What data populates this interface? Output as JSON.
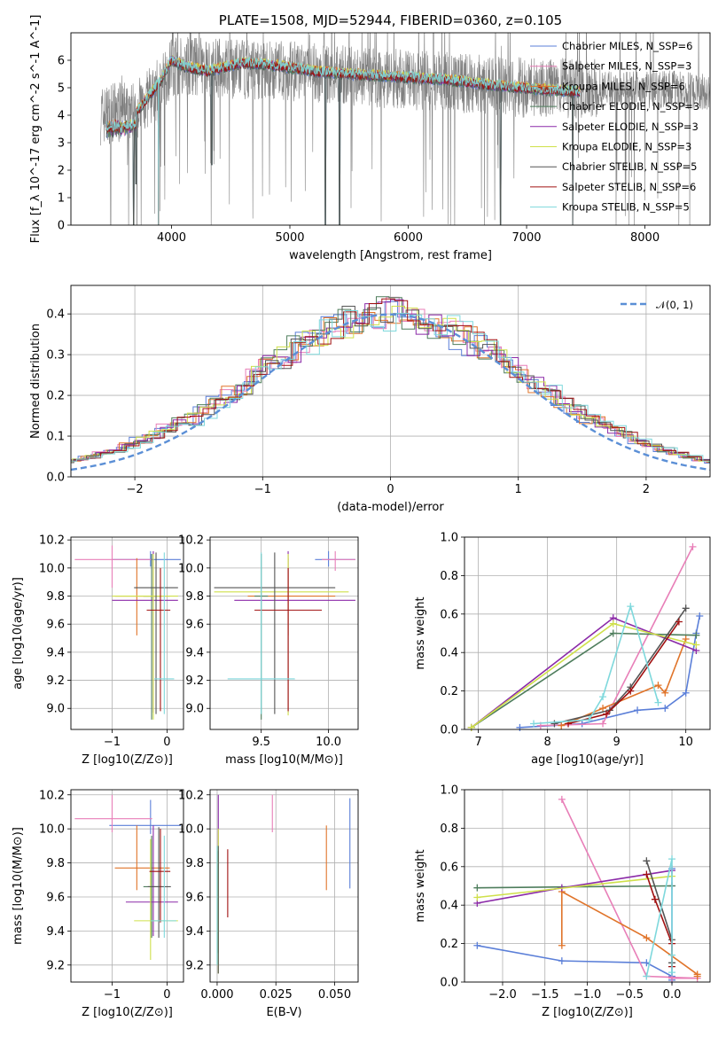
{
  "colors": {
    "c0": "#5b7fd8",
    "c1": "#e87fb8",
    "c2": "#e0742a",
    "c3": "#4e7d5c",
    "c4": "#8b2aa8",
    "c5": "#cfe04a",
    "c6": "#555555",
    "c7": "#a01010",
    "c8": "#7ed8dc",
    "normal": "#5b8fd6"
  },
  "chart_data": [
    {
      "id": "spectrum",
      "type": "line",
      "title": "PLATE=1508, MJD=52944, FIBERID=0360, z=0.105",
      "xlabel": "wavelength [Angstrom, rest frame]",
      "ylabel": "Flux [f_λ 10^-17 erg cm^-2 s^-1 A^-1]",
      "xlim": [
        3150,
        8550
      ],
      "ylim": [
        0,
        7
      ],
      "xticks": [
        "4000",
        "5000",
        "6000",
        "7000",
        "8000"
      ],
      "yticks": [
        "0",
        "1",
        "2",
        "3",
        "4",
        "5",
        "6"
      ],
      "grid": false,
      "legend_position": "right",
      "legend": [
        "Chabrier MILES, N_SSP=6",
        "Salpeter MILES, N_SSP=3",
        "Kroupa MILES, N_SSP=6",
        "Chabrier ELODIE, N_SSP=3",
        "Salpeter ELODIE, N_SSP=3",
        "Kroupa ELODIE, N_SSP=3",
        "Chabrier STELIB, N_SSP=5",
        "Salpeter STELIB, N_SSP=6",
        "Kroupa STELIB, N_SSP=5"
      ],
      "model_wavelength_range": [
        3450,
        7450
      ],
      "model_continuum": [
        [
          3450,
          4.0
        ],
        [
          3700,
          4.1
        ],
        [
          3900,
          5.2
        ],
        [
          4000,
          6.0
        ],
        [
          4100,
          5.8
        ],
        [
          4300,
          5.6
        ],
        [
          4600,
          5.9
        ],
        [
          4900,
          5.8
        ],
        [
          5200,
          5.6
        ],
        [
          5500,
          5.5
        ],
        [
          5900,
          5.4
        ],
        [
          6300,
          5.3
        ],
        [
          6700,
          5.1
        ],
        [
          7100,
          4.95
        ],
        [
          7450,
          4.85
        ]
      ],
      "data_wavelength_range": [
        3400,
        8550
      ],
      "data_continuum": [
        [
          3400,
          4.0
        ],
        [
          3700,
          4.2
        ],
        [
          3900,
          5.0
        ],
        [
          4000,
          5.8
        ],
        [
          4500,
          5.7
        ],
        [
          5000,
          5.6
        ],
        [
          6000,
          5.3
        ],
        [
          7000,
          5.0
        ],
        [
          8000,
          4.95
        ],
        [
          8550,
          4.9
        ]
      ]
    },
    {
      "id": "residuals",
      "type": "histogram",
      "xlabel": "(data-model)/error",
      "ylabel": "Normed distribution",
      "xlim": [
        -2.5,
        2.5
      ],
      "ylim": [
        0,
        0.47
      ],
      "xticks": [
        "−2",
        "−1",
        "0",
        "1",
        "2"
      ],
      "yticks": [
        "0.0",
        "0.1",
        "0.2",
        "0.3",
        "0.4"
      ],
      "grid": true,
      "legend": [
        "𝒩(0, 1)"
      ],
      "legend_position": "top-right",
      "bin_width": 0.1
    },
    {
      "id": "age_vs_Z",
      "type": "errorbar",
      "xlabel": "Z [log10(Z/Z⊙)]",
      "ylabel": "age  [log10(age/yr)]",
      "xlim": [
        -1.75,
        0.3
      ],
      "ylim": [
        8.85,
        10.22
      ],
      "xticks": [
        "−1",
        "0"
      ],
      "yticks": [
        "9.0",
        "9.2",
        "9.4",
        "9.6",
        "9.8",
        "10.0",
        "10.2"
      ],
      "grid": true,
      "points": [
        {
          "x": -0.3,
          "xe": [
            0.7,
            0.55
          ],
          "y": 10.06,
          "ye": [
            0.05,
            0.06
          ],
          "c": "c0"
        },
        {
          "x": -1.0,
          "xe": [
            0.68,
            0.73
          ],
          "y": 10.06,
          "ye": [
            0.2,
            0.1
          ],
          "c": "c1"
        },
        {
          "x": -0.55,
          "xe": [
            0.4,
            0.6
          ],
          "y": 9.8,
          "ye": [
            0.28,
            0.27
          ],
          "c": "c2"
        },
        {
          "x": -0.28,
          "xe": [
            0.15,
            0.15
          ],
          "y": 9.8,
          "ye": [
            0.88,
            0.3
          ],
          "c": "c3"
        },
        {
          "x": -0.25,
          "xe": [
            0.75,
            0.45
          ],
          "y": 9.77,
          "ye": [
            0.8,
            0.35
          ],
          "c": "c4"
        },
        {
          "x": -0.25,
          "xe": [
            0.75,
            0.45
          ],
          "y": 9.8,
          "ye": [
            0.88,
            0.3
          ],
          "c": "c5"
        },
        {
          "x": -0.2,
          "xe": [
            0.4,
            0.4
          ],
          "y": 9.86,
          "ye": [
            0.9,
            0.25
          ],
          "c": "c6"
        },
        {
          "x": -0.12,
          "xe": [
            0.25,
            0.18
          ],
          "y": 9.7,
          "ye": [
            0.72,
            0.3
          ],
          "c": "c7"
        },
        {
          "x": -0.05,
          "xe": [
            0.18,
            0.18
          ],
          "y": 9.21,
          "ye": [
            0.25,
            0.9
          ],
          "c": "c8"
        }
      ]
    },
    {
      "id": "age_vs_mass",
      "type": "errorbar",
      "xlabel": "mass [log10(M/M⊙)]",
      "ylabel": "",
      "xlim": [
        9.12,
        10.22
      ],
      "ylim": [
        8.85,
        10.22
      ],
      "xticks": [
        "9.5",
        "10.0"
      ],
      "yticks": [
        "9.0",
        "9.2",
        "9.4",
        "9.6",
        "9.8",
        "10.0",
        "10.2"
      ],
      "grid": true,
      "points": [
        {
          "x": 10.0,
          "xe": [
            0.1,
            0.2
          ],
          "y": 10.06,
          "ye": [
            0.05,
            0.06
          ],
          "c": "c0"
        },
        {
          "x": 10.05,
          "xe": [
            0.1,
            0.15
          ],
          "y": 10.06,
          "ye": [
            0.08,
            0.06
          ],
          "c": "c1"
        },
        {
          "x": 9.7,
          "xe": [
            0.3,
            0.35
          ],
          "y": 9.8,
          "ye": [
            0.28,
            0.27
          ],
          "c": "c2"
        },
        {
          "x": 9.5,
          "xe": [
            0.05,
            0.05
          ],
          "y": 9.8,
          "ye": [
            0.88,
            0.3
          ],
          "c": "c3"
        },
        {
          "x": 9.7,
          "xe": [
            0.4,
            0.5
          ],
          "y": 9.77,
          "ye": [
            0.8,
            0.35
          ],
          "c": "c4"
        },
        {
          "x": 9.7,
          "xe": [
            0.55,
            0.45
          ],
          "y": 9.83,
          "ye": [
            0.88,
            0.27
          ],
          "c": "c5"
        },
        {
          "x": 9.6,
          "xe": [
            0.45,
            0.45
          ],
          "y": 9.86,
          "ye": [
            0.9,
            0.25
          ],
          "c": "c6"
        },
        {
          "x": 9.7,
          "xe": [
            0.25,
            0.25
          ],
          "y": 9.7,
          "ye": [
            0.72,
            0.3
          ],
          "c": "c7"
        },
        {
          "x": 9.5,
          "xe": [
            0.25,
            0.25
          ],
          "y": 9.21,
          "ye": [
            0.25,
            0.9
          ],
          "c": "c8"
        }
      ]
    },
    {
      "id": "weight_vs_age",
      "type": "line",
      "xlabel": "age  [log10(age/yr)]",
      "ylabel": "mass weight",
      "xlim": [
        6.8,
        10.35
      ],
      "ylim": [
        0,
        1.0
      ],
      "xticks": [
        "7",
        "8",
        "9",
        "10"
      ],
      "yticks": [
        "0.0",
        "0.2",
        "0.4",
        "0.6",
        "0.8",
        "1.0"
      ],
      "grid": true,
      "series": [
        {
          "c": "c0",
          "x": [
            7.6,
            8.5,
            9.3,
            9.7,
            10.0,
            10.15,
            10.2
          ],
          "y": [
            0.01,
            0.03,
            0.1,
            0.11,
            0.19,
            0.5,
            0.59
          ]
        },
        {
          "c": "c1",
          "x": [
            7.9,
            8.8,
            10.1
          ],
          "y": [
            0.02,
            0.03,
            0.95
          ]
        },
        {
          "c": "c2",
          "x": [
            8.2,
            8.8,
            9.6,
            9.7,
            10.0
          ],
          "y": [
            0.02,
            0.11,
            0.23,
            0.19,
            0.47
          ]
        },
        {
          "c": "c3",
          "x": [
            6.9,
            8.95,
            10.15
          ],
          "y": [
            0.01,
            0.5,
            0.49
          ]
        },
        {
          "c": "c4",
          "x": [
            6.9,
            8.95,
            10.15
          ],
          "y": [
            0.01,
            0.58,
            0.41
          ]
        },
        {
          "c": "c5",
          "x": [
            6.9,
            8.95,
            10.15
          ],
          "y": [
            0.01,
            0.55,
            0.44
          ]
        },
        {
          "c": "c6",
          "x": [
            8.1,
            8.9,
            9.2,
            10.0
          ],
          "y": [
            0.03,
            0.1,
            0.22,
            0.63
          ]
        },
        {
          "c": "c7",
          "x": [
            8.3,
            8.85,
            9.2,
            9.9
          ],
          "y": [
            0.03,
            0.08,
            0.2,
            0.56
          ]
        },
        {
          "c": "c8",
          "x": [
            7.8,
            8.6,
            8.8,
            9.2,
            9.6
          ],
          "y": [
            0.03,
            0.05,
            0.17,
            0.64,
            0.14
          ]
        }
      ]
    },
    {
      "id": "mass_vs_Z",
      "type": "errorbar",
      "xlabel": "Z [log10(Z/Z⊙)]",
      "ylabel": "mass [log10(M/M⊙)]",
      "xlim": [
        -1.75,
        0.3
      ],
      "ylim": [
        9.1,
        10.23
      ],
      "xticks": [
        "−1",
        "0"
      ],
      "yticks": [
        "9.2",
        "9.4",
        "9.6",
        "9.8",
        "10.0",
        "10.2"
      ],
      "grid": true,
      "points": [
        {
          "x": -0.3,
          "xe": [
            0.75,
            0.55
          ],
          "y": 10.02,
          "ye": [
            0.05,
            0.15
          ],
          "c": "c0"
        },
        {
          "x": -1.0,
          "xe": [
            0.68,
            0.73
          ],
          "y": 10.06,
          "ye": [
            0.08,
            0.14
          ],
          "c": "c1"
        },
        {
          "x": -0.55,
          "xe": [
            0.4,
            0.6
          ],
          "y": 9.77,
          "ye": [
            0.13,
            0.25
          ],
          "c": "c2"
        },
        {
          "x": -0.28,
          "xe": [
            0.15,
            0.18
          ],
          "y": 9.66,
          "ye": [
            0.3,
            0.3
          ],
          "c": "c3"
        },
        {
          "x": -0.25,
          "xe": [
            0.5,
            0.45
          ],
          "y": 9.57,
          "ye": [
            0.2,
            0.45
          ],
          "c": "c4"
        },
        {
          "x": -0.3,
          "xe": [
            0.3,
            0.5
          ],
          "y": 9.46,
          "ye": [
            0.23,
            0.48
          ],
          "c": "c5"
        },
        {
          "x": -0.15,
          "xe": [
            0.2,
            0.22
          ],
          "y": 9.66,
          "ye": [
            0.3,
            0.35
          ],
          "c": "c6"
        },
        {
          "x": -0.12,
          "xe": [
            0.2,
            0.18
          ],
          "y": 9.75,
          "ye": [
            0.3,
            0.25
          ],
          "c": "c7"
        },
        {
          "x": -0.05,
          "xe": [
            0.25,
            0.22
          ],
          "y": 9.46,
          "ye": [
            0.1,
            0.5
          ],
          "c": "c8"
        }
      ]
    },
    {
      "id": "mass_vs_ebv",
      "type": "errorbar",
      "xlabel": "E(B-V)",
      "ylabel": "",
      "xlim": [
        -0.003,
        0.06
      ],
      "ylim": [
        9.1,
        10.23
      ],
      "xticks": [
        "0.000",
        "0.025",
        "0.050"
      ],
      "yticks": [
        "9.2",
        "9.4",
        "9.6",
        "9.8",
        "10.0",
        "10.2"
      ],
      "grid": true,
      "points": [
        {
          "x": 0.0565,
          "xe": [
            0,
            0
          ],
          "y": 9.9,
          "ye": [
            0.25,
            0.28
          ],
          "c": "c0"
        },
        {
          "x": 0.0235,
          "xe": [
            0,
            0
          ],
          "y": 10.06,
          "ye": [
            0.08,
            0.14
          ],
          "c": "c1"
        },
        {
          "x": 0.0465,
          "xe": [
            0,
            0
          ],
          "y": 9.84,
          "ye": [
            0.2,
            0.18
          ],
          "c": "c2"
        },
        {
          "x": 0.0005,
          "xe": [
            0,
            0
          ],
          "y": 9.57,
          "ye": [
            0.3,
            0.3
          ],
          "c": "c3"
        },
        {
          "x": 0.0005,
          "xe": [
            0,
            0
          ],
          "y": 9.96,
          "ye": [
            0.06,
            0.24
          ],
          "c": "c4"
        },
        {
          "x": 0.0005,
          "xe": [
            0,
            0
          ],
          "y": 9.6,
          "ye": [
            0.45,
            0.4
          ],
          "c": "c5"
        },
        {
          "x": 0.0005,
          "xe": [
            0,
            0
          ],
          "y": 9.55,
          "ye": [
            0.4,
            0.35
          ],
          "c": "c6"
        },
        {
          "x": 0.0045,
          "xe": [
            0,
            0
          ],
          "y": 9.6,
          "ye": [
            0.12,
            0.28
          ],
          "c": "c7"
        },
        {
          "x": 0.0,
          "xe": [
            0,
            0
          ],
          "y": 9.5,
          "ye": [
            0.3,
            0.4
          ],
          "c": "c8"
        }
      ]
    },
    {
      "id": "weight_vs_Z",
      "type": "line",
      "xlabel": "Z [log10(Z/Z⊙)]",
      "ylabel": "mass weight",
      "xlim": [
        -2.45,
        0.45
      ],
      "ylim": [
        0,
        1.0
      ],
      "xticks": [
        "−2.0",
        "−1.5",
        "−1.0",
        "−0.5",
        "0.0"
      ],
      "yticks": [
        "0.0",
        "0.2",
        "0.4",
        "0.6",
        "0.8",
        "1.0"
      ],
      "grid": true,
      "series": [
        {
          "c": "c0",
          "x": [
            -2.3,
            -1.3,
            -0.3,
            0.0,
            0.0,
            0.0,
            0.0
          ],
          "y": [
            0.19,
            0.11,
            0.1,
            0.03,
            0.01,
            0.5,
            0.59
          ]
        },
        {
          "c": "c1",
          "x": [
            -1.3,
            -0.3,
            0.3,
            0.0
          ],
          "y": [
            0.95,
            0.03,
            0.02,
            0.02
          ]
        },
        {
          "c": "c2",
          "x": [
            -1.3,
            -1.3,
            -0.3,
            0.3,
            0.3
          ],
          "y": [
            0.19,
            0.47,
            0.23,
            0.04,
            0.03
          ]
        },
        {
          "c": "c3",
          "x": [
            -2.3,
            0.0
          ],
          "y": [
            0.49,
            0.5
          ]
        },
        {
          "c": "c4",
          "x": [
            -2.3,
            -1.3,
            0.0
          ],
          "y": [
            0.41,
            0.49,
            0.58
          ]
        },
        {
          "c": "c5",
          "x": [
            -2.3,
            0.0
          ],
          "y": [
            0.44,
            0.55
          ]
        },
        {
          "c": "c6",
          "x": [
            -0.3,
            0.0,
            0.0
          ],
          "y": [
            0.63,
            0.22,
            0.1
          ]
        },
        {
          "c": "c7",
          "x": [
            -0.3,
            -0.2,
            0.0,
            0.0
          ],
          "y": [
            0.56,
            0.43,
            0.2,
            0.08
          ]
        },
        {
          "c": "c8",
          "x": [
            -0.3,
            0.0,
            0.0,
            0.0
          ],
          "y": [
            0.03,
            0.64,
            0.14,
            0.05
          ]
        }
      ]
    }
  ]
}
